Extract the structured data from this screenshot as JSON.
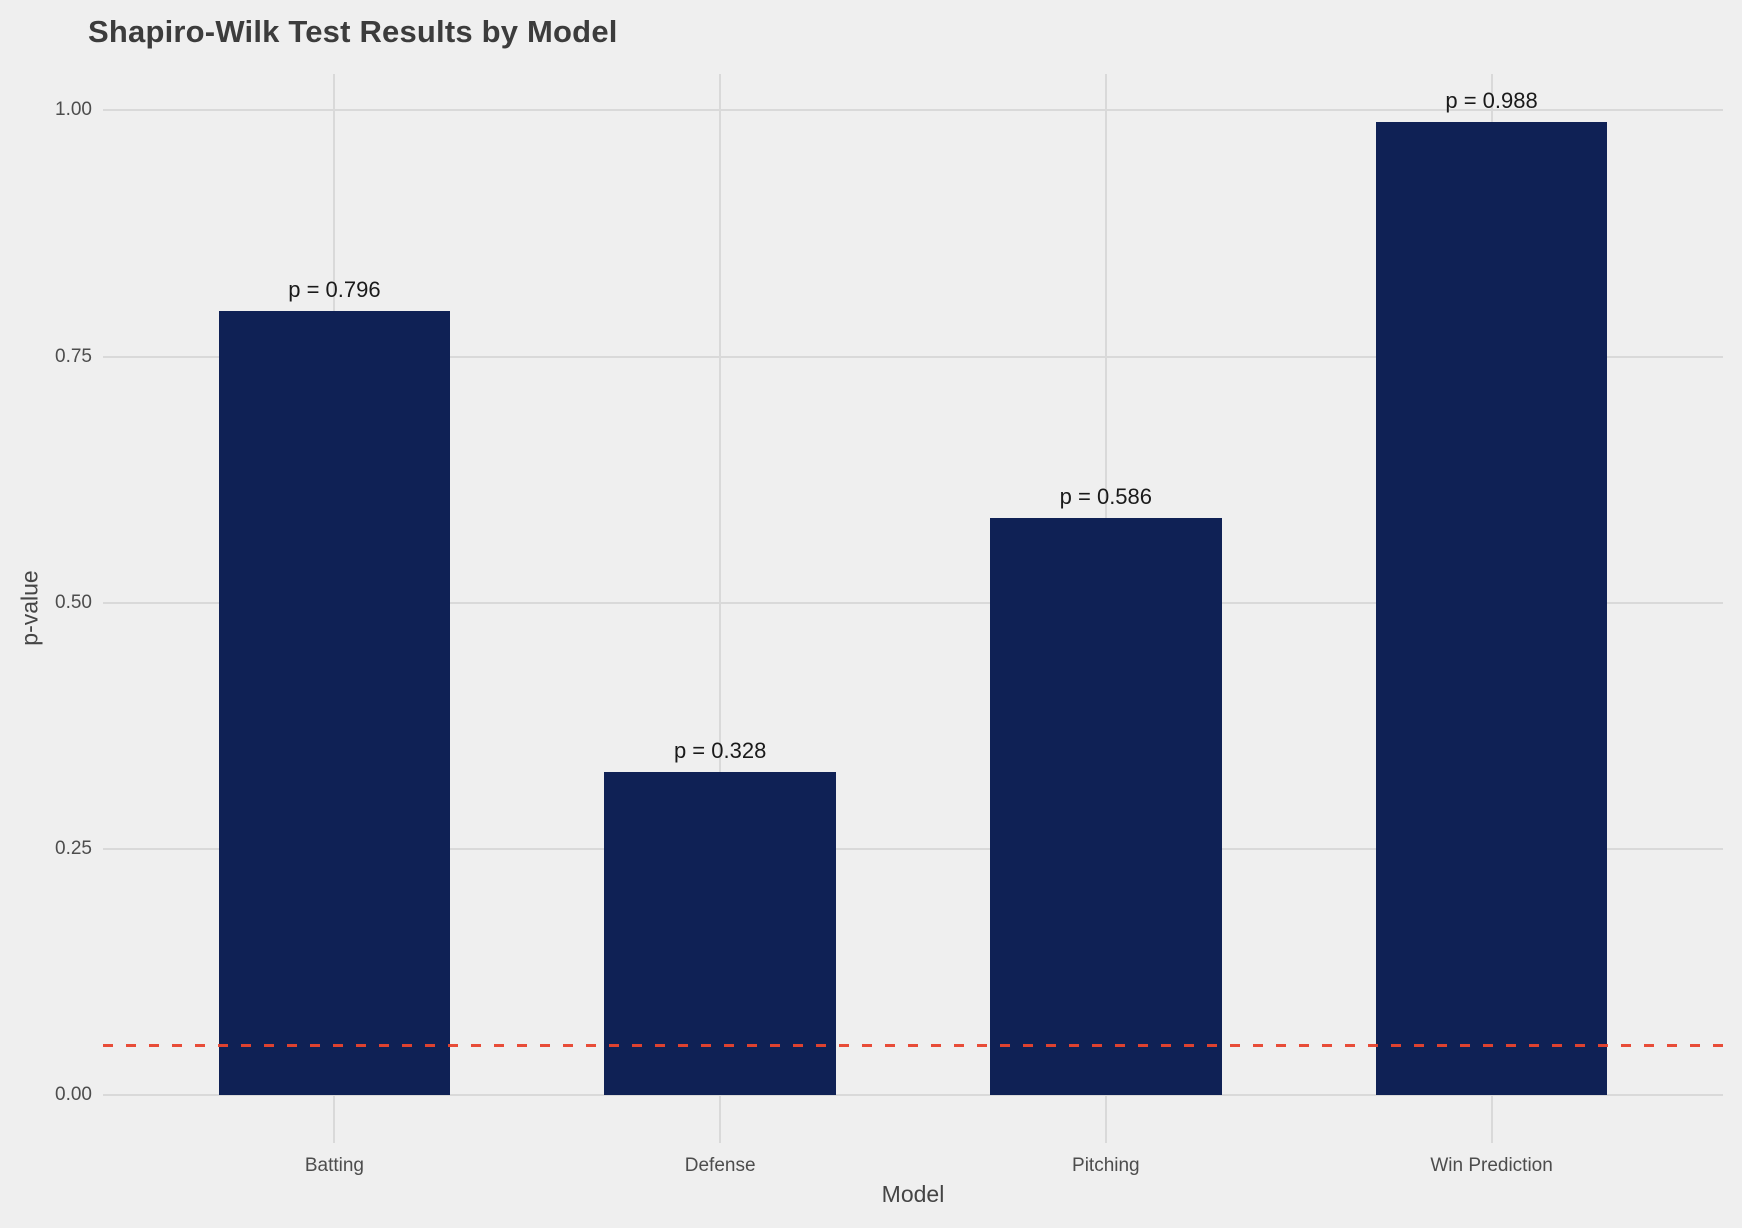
{
  "chart_data": {
    "type": "bar",
    "title": "Shapiro-Wilk Test Results by Model",
    "xlabel": "Model",
    "ylabel": "p-value",
    "categories": [
      "Batting",
      "Defense",
      "Pitching",
      "Win Prediction"
    ],
    "values": [
      0.796,
      0.328,
      0.586,
      0.988
    ],
    "bar_labels": [
      "p = 0.796",
      "p = 0.328",
      "p = 0.586",
      "p = 0.988"
    ],
    "y_ticks": [
      0.0,
      0.25,
      0.5,
      0.75,
      1.0
    ],
    "y_tick_labels": [
      "0.00",
      "0.25",
      "0.50",
      "0.75",
      "1.00"
    ],
    "ylim": [
      -0.049,
      1.037
    ],
    "grid": true,
    "legend": false,
    "reference_line": {
      "y": 0.05,
      "style": "dashed",
      "label": ""
    },
    "colors": {
      "bar": "#0F2155",
      "background": "#EFEFEF",
      "gridline": "#D9D9D9",
      "reference": "#E8442E",
      "title": "#3C3C3C",
      "tick_label": "#4D4D4D",
      "axis_title": "#454545",
      "bar_label": "#1A1A1A"
    }
  }
}
